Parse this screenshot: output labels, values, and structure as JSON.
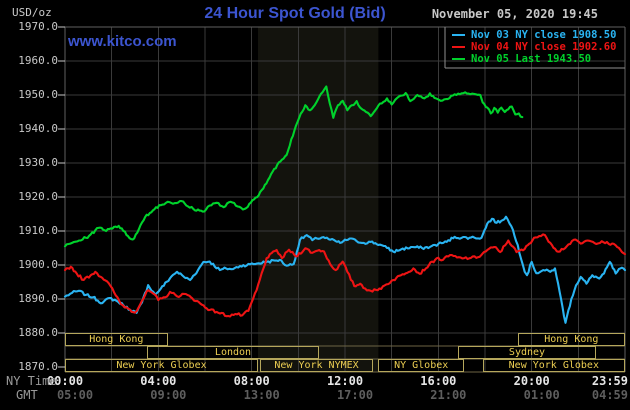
{
  "header": {
    "unit_label": "USD/oz",
    "title": "24 Hour Spot Gold (Bid)",
    "datetime": "November 05, 2020 19:45",
    "watermark": "www.kitco.com"
  },
  "legend": {
    "items": [
      {
        "label": "Nov 03 NY close 1908.50",
        "color": "#2ab4f2"
      },
      {
        "label": "Nov 04 NY close 1902.60",
        "color": "#ee1414"
      },
      {
        "label": "Nov 05 Last 1943.50",
        "color": "#00d22c"
      }
    ]
  },
  "axes": {
    "y": {
      "unit": "USD/oz",
      "min": 1870,
      "max": 1970,
      "step": 10,
      "labels": [
        "1970.0",
        "1960.0",
        "1950.0",
        "1940.0",
        "1930.0",
        "1920.0",
        "1910.0",
        "1900.0",
        "1890.0",
        "1880.0",
        "1870.0"
      ]
    },
    "x": {
      "row1_name": "NY Time",
      "row2_name": "GMT",
      "ticks": [
        {
          "t": 0,
          "ny": "00:00",
          "gmt": "05:00"
        },
        {
          "t": 4,
          "ny": "04:00",
          "gmt": "09:00"
        },
        {
          "t": 8,
          "ny": "08:00",
          "gmt": "13:00"
        },
        {
          "t": 12,
          "ny": "12:00",
          "gmt": "17:00"
        },
        {
          "t": 16,
          "ny": "16:00",
          "gmt": "21:00"
        },
        {
          "t": 20,
          "ny": "20:00",
          "gmt": "01:00"
        },
        {
          "t": 24,
          "ny": "23:59",
          "gmt": "04:59"
        }
      ]
    }
  },
  "sessions": [
    {
      "row": 0,
      "label": "Hong Kong",
      "start": 0,
      "end": 4.4
    },
    {
      "row": 0,
      "label": "Hong Kong",
      "start": 19.4,
      "end": 24
    },
    {
      "row": 1,
      "label": "London",
      "start": 3.5,
      "end": 10.9
    },
    {
      "row": 1,
      "label": "Sydney",
      "start": 16.85,
      "end": 22.75
    },
    {
      "row": 2,
      "label": "New York Globex",
      "start": 0,
      "end": 8.27
    },
    {
      "row": 2,
      "label": "New York NYMEX",
      "start": 8.36,
      "end": 13.2
    },
    {
      "row": 2,
      "label": "NY Globex",
      "start": 13.43,
      "end": 17.1
    },
    {
      "row": 2,
      "label": "New York Globex",
      "start": 17.9,
      "end": 24
    }
  ],
  "plot": {
    "band": {
      "start": 8.27,
      "end": 13.43,
      "color": "#13130d"
    },
    "grid_color": "#3a3a3a",
    "frame_color": "#5f5f5f",
    "row_line_color": "#6e6545",
    "tick_color": "#c9c9c9",
    "legend_sep_color": "#8f8f8f"
  },
  "chart_data": {
    "type": "line",
    "title": "24 Hour Spot Gold (Bid)",
    "xlabel": "NY Time (hours)",
    "ylabel": "USD/oz",
    "xlim": [
      0,
      24
    ],
    "ylim": [
      1870,
      1970
    ],
    "grid": true,
    "legend_position": "top-right",
    "series": [
      {
        "name": "Nov 03 (NY close 1908.50)",
        "color": "#2ab4f2",
        "points": [
          [
            0,
            1890.7
          ],
          [
            0.3,
            1891.8
          ],
          [
            0.6,
            1892.4
          ],
          [
            0.9,
            1891.2
          ],
          [
            1.2,
            1890.5
          ],
          [
            1.6,
            1888.8
          ],
          [
            1.9,
            1890.3
          ],
          [
            2.2,
            1889.5
          ],
          [
            2.5,
            1888.2
          ],
          [
            2.8,
            1886.8
          ],
          [
            3.07,
            1885.9
          ],
          [
            3.3,
            1889
          ],
          [
            3.56,
            1894.1
          ],
          [
            3.86,
            1891.3
          ],
          [
            4.1,
            1893
          ],
          [
            4.63,
            1897.1
          ],
          [
            4.8,
            1898
          ],
          [
            5.1,
            1896.5
          ],
          [
            5.36,
            1895.6
          ],
          [
            5.7,
            1898.5
          ],
          [
            5.93,
            1900.9
          ],
          [
            6.2,
            1901
          ],
          [
            6.64,
            1898.5
          ],
          [
            6.9,
            1899
          ],
          [
            7.2,
            1898.8
          ],
          [
            7.5,
            1899.7
          ],
          [
            7.93,
            1900.2
          ],
          [
            8.3,
            1900.5
          ],
          [
            8.64,
            1900.9
          ],
          [
            9.0,
            1901.3
          ],
          [
            9.2,
            1901.5
          ],
          [
            9.5,
            1899.8
          ],
          [
            9.8,
            1900.3
          ],
          [
            10.07,
            1907.4
          ],
          [
            10.36,
            1908.8
          ],
          [
            10.6,
            1907.3
          ],
          [
            10.8,
            1907.8
          ],
          [
            11.07,
            1908.2
          ],
          [
            11.3,
            1907.6
          ],
          [
            11.6,
            1907
          ],
          [
            11.79,
            1906.5
          ],
          [
            12.2,
            1907.8
          ],
          [
            12.5,
            1907
          ],
          [
            12.8,
            1906.5
          ],
          [
            13.1,
            1906.8
          ],
          [
            13.5,
            1906
          ],
          [
            13.8,
            1905
          ],
          [
            14.07,
            1903.9
          ],
          [
            14.4,
            1904.6
          ],
          [
            14.9,
            1905.3
          ],
          [
            15.3,
            1905
          ],
          [
            15.64,
            1905.3
          ],
          [
            16.0,
            1906.2
          ],
          [
            16.36,
            1906.8
          ],
          [
            16.7,
            1908.3
          ],
          [
            17.0,
            1908
          ],
          [
            17.4,
            1908.1
          ],
          [
            17.85,
            1908
          ],
          [
            18.1,
            1912.2
          ],
          [
            18.3,
            1913.6
          ],
          [
            18.5,
            1912.4
          ],
          [
            18.7,
            1913
          ],
          [
            18.9,
            1914.2
          ],
          [
            19.2,
            1910.3
          ],
          [
            19.4,
            1905.9
          ],
          [
            19.7,
            1898
          ],
          [
            19.8,
            1897
          ],
          [
            20.0,
            1900.9
          ],
          [
            20.2,
            1897.6
          ],
          [
            20.5,
            1898.5
          ],
          [
            20.8,
            1898
          ],
          [
            21.0,
            1899
          ],
          [
            21.2,
            1892
          ],
          [
            21.45,
            1883
          ],
          [
            21.7,
            1890
          ],
          [
            21.9,
            1894
          ],
          [
            22.1,
            1896.5
          ],
          [
            22.35,
            1894.5
          ],
          [
            22.6,
            1897
          ],
          [
            22.9,
            1896
          ],
          [
            23.1,
            1897.5
          ],
          [
            23.35,
            1900.9
          ],
          [
            23.6,
            1897.5
          ],
          [
            23.8,
            1899
          ],
          [
            24,
            1898.5
          ]
        ]
      },
      {
        "name": "Nov 04 (NY close 1902.60)",
        "color": "#ee1414",
        "points": [
          [
            0,
            1898.5
          ],
          [
            0.25,
            1899.5
          ],
          [
            0.5,
            1897.5
          ],
          [
            0.8,
            1895.6
          ],
          [
            1.1,
            1897
          ],
          [
            1.3,
            1898
          ],
          [
            1.6,
            1896.2
          ],
          [
            1.8,
            1895.2
          ],
          [
            2.1,
            1892
          ],
          [
            2.4,
            1888.5
          ],
          [
            2.7,
            1887.2
          ],
          [
            3.0,
            1886
          ],
          [
            3.3,
            1889.5
          ],
          [
            3.56,
            1892.6
          ],
          [
            3.8,
            1891.5
          ],
          [
            4.0,
            1889.7
          ],
          [
            4.3,
            1890.5
          ],
          [
            4.5,
            1892.1
          ],
          [
            4.8,
            1890.8
          ],
          [
            5.1,
            1891.5
          ],
          [
            5.4,
            1890.5
          ],
          [
            5.79,
            1888.7
          ],
          [
            6.21,
            1886.8
          ],
          [
            6.5,
            1886.2
          ],
          [
            7.0,
            1885
          ],
          [
            7.3,
            1885.6
          ],
          [
            7.6,
            1885.2
          ],
          [
            7.86,
            1886.5
          ],
          [
            8.21,
            1892.6
          ],
          [
            8.64,
            1902
          ],
          [
            9.07,
            1904.4
          ],
          [
            9.3,
            1902
          ],
          [
            9.6,
            1904.5
          ],
          [
            9.9,
            1902.5
          ],
          [
            10.3,
            1904.9
          ],
          [
            10.6,
            1903.6
          ],
          [
            10.9,
            1904.4
          ],
          [
            11.1,
            1904
          ],
          [
            11.36,
            1900.3
          ],
          [
            11.6,
            1898.5
          ],
          [
            11.9,
            1901
          ],
          [
            12.1,
            1898
          ],
          [
            12.4,
            1893.8
          ],
          [
            12.65,
            1894.5
          ],
          [
            12.86,
            1893.1
          ],
          [
            13.1,
            1892.4
          ],
          [
            13.4,
            1892.6
          ],
          [
            13.7,
            1894
          ],
          [
            14.07,
            1895.6
          ],
          [
            14.4,
            1897
          ],
          [
            14.93,
            1899
          ],
          [
            15.2,
            1897.4
          ],
          [
            15.6,
            1900
          ],
          [
            15.93,
            1902
          ],
          [
            16.2,
            1901.5
          ],
          [
            16.5,
            1902.9
          ],
          [
            16.8,
            1902.2
          ],
          [
            17.1,
            1902
          ],
          [
            17.4,
            1902.1
          ],
          [
            17.7,
            1902.3
          ],
          [
            18.1,
            1904.4
          ],
          [
            18.4,
            1905.3
          ],
          [
            18.65,
            1903.8
          ],
          [
            19.0,
            1907.2
          ],
          [
            19.35,
            1903.8
          ],
          [
            19.7,
            1904.7
          ],
          [
            20.1,
            1908
          ],
          [
            20.4,
            1908.5
          ],
          [
            20.57,
            1908.8
          ],
          [
            20.8,
            1906.5
          ],
          [
            21.14,
            1903.9
          ],
          [
            21.5,
            1905.5
          ],
          [
            21.8,
            1907.4
          ],
          [
            22.1,
            1906.3
          ],
          [
            22.4,
            1907.2
          ],
          [
            22.7,
            1906.4
          ],
          [
            23.0,
            1907
          ],
          [
            23.3,
            1906.2
          ],
          [
            23.6,
            1905.8
          ],
          [
            23.8,
            1904.5
          ],
          [
            24,
            1903.2
          ]
        ]
      },
      {
        "name": "Nov 05 (Last 1943.50)",
        "color": "#00d22c",
        "points": [
          [
            0,
            1905.5
          ],
          [
            0.3,
            1906.5
          ],
          [
            0.6,
            1907.2
          ],
          [
            0.9,
            1908
          ],
          [
            1.1,
            1909
          ],
          [
            1.3,
            1910.2
          ],
          [
            1.5,
            1911
          ],
          [
            1.7,
            1910.2
          ],
          [
            1.9,
            1910.6
          ],
          [
            2.1,
            1911.2
          ],
          [
            2.3,
            1911.5
          ],
          [
            2.5,
            1910
          ],
          [
            2.7,
            1908.5
          ],
          [
            2.9,
            1907.5
          ],
          [
            3.1,
            1909.5
          ],
          [
            3.3,
            1912.5
          ],
          [
            3.5,
            1914.8
          ],
          [
            3.7,
            1915.5
          ],
          [
            3.9,
            1917
          ],
          [
            4.1,
            1917.6
          ],
          [
            4.4,
            1918.6
          ],
          [
            4.7,
            1918.2
          ],
          [
            5.0,
            1918.8
          ],
          [
            5.2,
            1917.5
          ],
          [
            5.5,
            1916.5
          ],
          [
            5.9,
            1915.7
          ],
          [
            6.2,
            1917.5
          ],
          [
            6.5,
            1918.3
          ],
          [
            6.8,
            1917
          ],
          [
            7.1,
            1918.6
          ],
          [
            7.4,
            1917.2
          ],
          [
            7.7,
            1916.5
          ],
          [
            7.9,
            1918
          ],
          [
            8.1,
            1919.3
          ],
          [
            8.3,
            1920.5
          ],
          [
            8.5,
            1922.5
          ],
          [
            8.7,
            1925
          ],
          [
            8.9,
            1927.5
          ],
          [
            9.1,
            1929.5
          ],
          [
            9.3,
            1931
          ],
          [
            9.5,
            1932.4
          ],
          [
            9.7,
            1937
          ],
          [
            9.9,
            1941
          ],
          [
            10.1,
            1944.5
          ],
          [
            10.3,
            1947
          ],
          [
            10.5,
            1945.5
          ],
          [
            10.7,
            1947
          ],
          [
            10.9,
            1949.5
          ],
          [
            11.1,
            1951.5
          ],
          [
            11.2,
            1952.5
          ],
          [
            11.35,
            1947.5
          ],
          [
            11.5,
            1943.3
          ],
          [
            11.7,
            1947
          ],
          [
            11.9,
            1948.3
          ],
          [
            12.1,
            1945.5
          ],
          [
            12.3,
            1947
          ],
          [
            12.5,
            1948.2
          ],
          [
            12.7,
            1946
          ],
          [
            12.9,
            1945
          ],
          [
            13.1,
            1943.8
          ],
          [
            13.3,
            1945.5
          ],
          [
            13.5,
            1947.5
          ],
          [
            13.8,
            1949
          ],
          [
            14.0,
            1947.2
          ],
          [
            14.3,
            1949.5
          ],
          [
            14.6,
            1950.6
          ],
          [
            14.8,
            1948.2
          ],
          [
            15.1,
            1950
          ],
          [
            15.4,
            1949
          ],
          [
            15.64,
            1950.5
          ],
          [
            15.9,
            1949
          ],
          [
            16.1,
            1948.3
          ],
          [
            16.4,
            1948.8
          ],
          [
            16.7,
            1950.2
          ],
          [
            17.0,
            1950.5
          ],
          [
            17.3,
            1950.4
          ],
          [
            17.6,
            1950.2
          ],
          [
            17.8,
            1950
          ],
          [
            17.9,
            1947.8
          ],
          [
            18.1,
            1946.3
          ],
          [
            18.25,
            1944.6
          ],
          [
            18.4,
            1946.2
          ],
          [
            18.55,
            1944.8
          ],
          [
            18.7,
            1946.3
          ],
          [
            18.85,
            1945
          ],
          [
            19.0,
            1945.8
          ],
          [
            19.15,
            1946.6
          ],
          [
            19.3,
            1944.3
          ],
          [
            19.45,
            1944.6
          ],
          [
            19.6,
            1943.5
          ]
        ]
      }
    ]
  }
}
